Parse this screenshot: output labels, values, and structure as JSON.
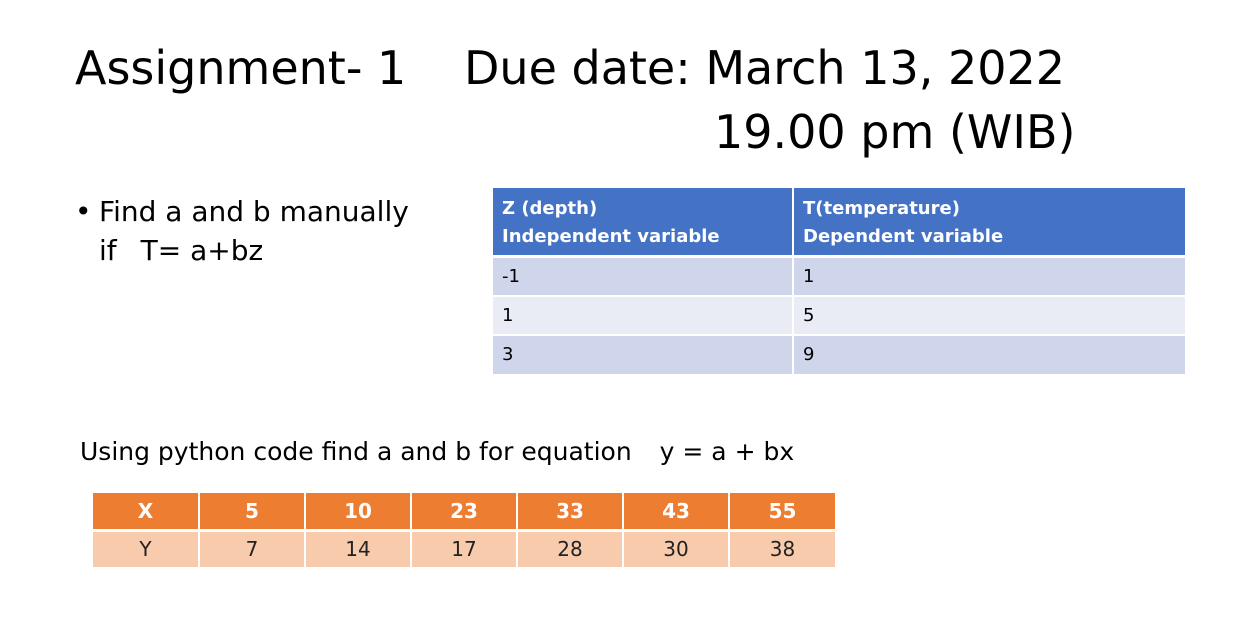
{
  "title": {
    "part1": "Assignment- 1",
    "part2": "Due date: March 13, 2022",
    "part3": "19.00 pm (WIB)"
  },
  "bullet": {
    "marker": "•",
    "line1": "Find a and b manually",
    "line2_prefix": "if",
    "line2_equation": "T= a+bz"
  },
  "depth_table": {
    "headers": [
      {
        "line1": "Z (depth)",
        "line2": "Independent variable"
      },
      {
        "line1": "T(temperature)",
        "line2": "Dependent variable"
      }
    ],
    "rows": [
      [
        "-1",
        "1"
      ],
      [
        "1",
        "5"
      ],
      [
        "3",
        "9"
      ]
    ]
  },
  "python_task": {
    "text": "Using python code find a and b  for equation",
    "equation": "y = a + bx"
  },
  "xy_table": {
    "x_label": "X",
    "x_values": [
      "5",
      "10",
      "23",
      "33",
      "43",
      "55"
    ],
    "y_label": "Y",
    "y_values": [
      "7",
      "14",
      "17",
      "28",
      "30",
      "38"
    ]
  },
  "colors": {
    "blue_header": "#4472c4",
    "blue_row_dark": "#cfd5ea",
    "blue_row_light": "#e9ebf5",
    "orange_header": "#ed7d31",
    "orange_row": "#f8cbad"
  }
}
